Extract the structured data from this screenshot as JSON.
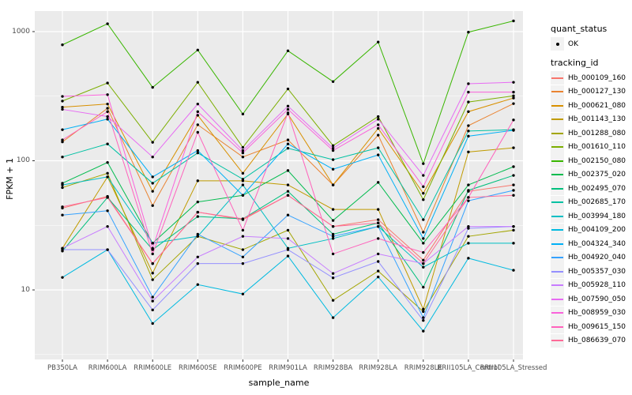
{
  "legend": {
    "quant_status_title": "quant_status",
    "ok_label": "OK",
    "tracking_id_title": "tracking_id"
  },
  "panel": {
    "bg": "#EBEBEB",
    "grid_color": "#FFFFFF",
    "key_bg": "#F2F2F2",
    "point_color": "#000000"
  },
  "chart_data": {
    "type": "line",
    "title": "",
    "xlabel": "sample_name",
    "ylabel": "FPKM + 1",
    "yscale": "log10",
    "ylim": [
      3,
      1300
    ],
    "y_ticks": [
      10,
      100,
      1000
    ],
    "y_minor_ticks": [
      3.162,
      31.62,
      316.2
    ],
    "grid": true,
    "legend_position": "right",
    "marker": "black point (quant_status OK)",
    "categories": [
      "PB350LA",
      "RRIM600LA",
      "RRIM600LE",
      "RRIM600SE",
      "RRIM600PE",
      "RRIM901LA",
      "RRIM928BA",
      "RRIM928LA",
      "RRIM928LE",
      "RRII105LA_Control",
      "RRII105LA_Stressed"
    ],
    "series": [
      {
        "name": "Hb_000109_160",
        "color": "#F8766D",
        "values": [
          43,
          53,
          16,
          40,
          35,
          54,
          31,
          35,
          17,
          58,
          65
        ]
      },
      {
        "name": "Hb_000127_130",
        "color": "#EA8331",
        "values": [
          140,
          255,
          45,
          190,
          107,
          145,
          65,
          158,
          28,
          187,
          277
        ]
      },
      {
        "name": "Hb_000621_080",
        "color": "#D89000",
        "values": [
          260,
          275,
          58,
          225,
          80,
          230,
          65,
          178,
          56,
          240,
          306
        ]
      },
      {
        "name": "Hb_001143_130",
        "color": "#C09B00",
        "values": [
          21,
          75,
          13.5,
          70,
          70,
          65,
          42,
          42,
          7.1,
          117,
          126
        ]
      },
      {
        "name": "Hb_001288_080",
        "color": "#A3A500",
        "values": [
          62,
          80,
          12,
          26,
          20.5,
          29,
          8.3,
          14,
          6.8,
          26,
          29
        ]
      },
      {
        "name": "Hb_001610_110",
        "color": "#7CAE00",
        "values": [
          290,
          400,
          139,
          405,
          127,
          360,
          131,
          220,
          50,
          285,
          318
        ]
      },
      {
        "name": "Hb_002150_080",
        "color": "#39B600",
        "values": [
          790,
          1150,
          370,
          720,
          230,
          710,
          410,
          830,
          95,
          990,
          1210
        ]
      },
      {
        "name": "Hb_002375_020",
        "color": "#00BB4E",
        "values": [
          67,
          97,
          23,
          48,
          54,
          84,
          34.5,
          68,
          23,
          65,
          90
        ]
      },
      {
        "name": "Hb_002495_070",
        "color": "#00BF7D",
        "values": [
          20,
          52,
          20.5,
          37,
          35.5,
          58,
          27,
          33,
          10.5,
          59,
          77
        ]
      },
      {
        "name": "Hb_002685_170",
        "color": "#00C1A3",
        "values": [
          107,
          135,
          67,
          115,
          72,
          125,
          102,
          126,
          35,
          170,
          174
        ]
      },
      {
        "name": "Hb_003994_180",
        "color": "#00BFC4",
        "values": [
          65,
          75,
          23,
          26,
          65,
          21,
          25,
          31,
          15,
          23,
          23
        ]
      },
      {
        "name": "Hb_004109_200",
        "color": "#00BAE0",
        "values": [
          12.5,
          20.5,
          5.5,
          11,
          9.3,
          18.3,
          6.1,
          12.6,
          4.8,
          17.6,
          14.2
        ]
      },
      {
        "name": "Hb_004324_340",
        "color": "#00B0F6",
        "values": [
          174,
          210,
          75,
          120,
          54,
          135,
          86,
          111,
          25,
          155,
          172
        ]
      },
      {
        "name": "Hb_004920_040",
        "color": "#35A2FF",
        "values": [
          38,
          41,
          8.8,
          27,
          18,
          38,
          26,
          31,
          6.1,
          49,
          59
        ]
      },
      {
        "name": "Hb_005357_030",
        "color": "#9590FF",
        "values": [
          20.5,
          20.5,
          7,
          16,
          16,
          20.5,
          12.4,
          16.6,
          5.8,
          30,
          31
        ]
      },
      {
        "name": "Hb_005928_110",
        "color": "#C77CFF",
        "values": [
          21,
          31,
          8.2,
          18,
          26,
          25,
          13.4,
          19,
          16,
          31,
          31
        ]
      },
      {
        "name": "Hb_007590_050",
        "color": "#E76BF3",
        "values": [
          250,
          220,
          107,
          275,
          120,
          265,
          125,
          210,
          77,
          395,
          405
        ]
      },
      {
        "name": "Hb_008959_030",
        "color": "#FA62DB",
        "values": [
          315,
          325,
          21,
          240,
          115,
          250,
          120,
          190,
          63,
          340,
          340
        ]
      },
      {
        "name": "Hb_009615_150",
        "color": "#FF62BC",
        "values": [
          145,
          240,
          19,
          166,
          29,
          235,
          19,
          25,
          19.5,
          52,
          207
        ]
      },
      {
        "name": "Hb_086639_070",
        "color": "#FF6A98",
        "values": [
          44,
          52,
          16,
          40,
          35.5,
          54,
          31,
          33,
          16,
          52,
          54
        ]
      }
    ]
  }
}
